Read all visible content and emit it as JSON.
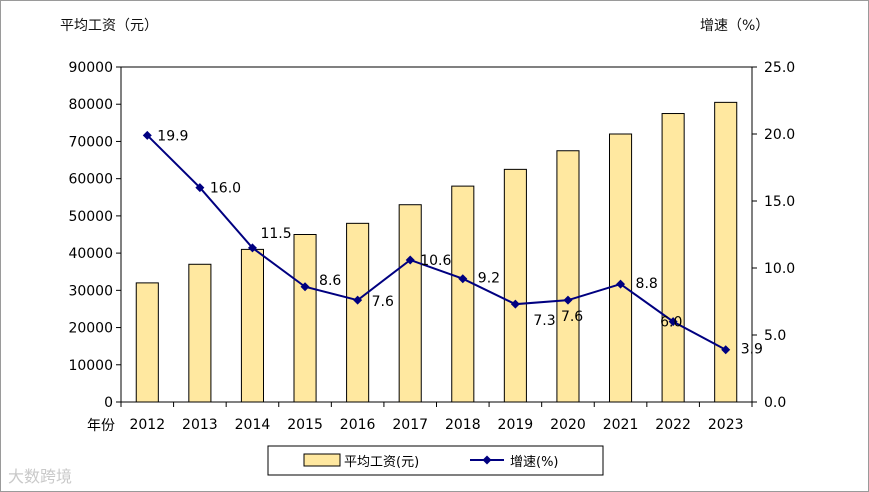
{
  "chart_data": {
    "type": "bar",
    "categories": [
      "2012",
      "2013",
      "2014",
      "2015",
      "2016",
      "2017",
      "2018",
      "2019",
      "2020",
      "2021",
      "2022",
      "2023"
    ],
    "x_prefix_label": "年份",
    "series": [
      {
        "name": "平均工资(元)",
        "type": "bar",
        "axis": "left",
        "values": [
          32000,
          37000,
          41000,
          45000,
          48000,
          53000,
          58000,
          62500,
          67500,
          72000,
          77500,
          80500
        ],
        "color": "#ffe8a0",
        "stroke": "#000000"
      },
      {
        "name": "增速(%)",
        "type": "line",
        "axis": "right",
        "values": [
          19.9,
          16.0,
          11.5,
          8.6,
          7.6,
          10.6,
          9.2,
          7.3,
          7.6,
          8.8,
          6.0,
          3.9
        ],
        "labels": [
          "19.9",
          "16.0",
          "11.5",
          "8.6",
          "7.6",
          "10.6",
          "9.2",
          "7.3",
          "7.6",
          "8.8",
          "6.0",
          "3.9"
        ],
        "color": "#000080"
      }
    ],
    "left_axis": {
      "title": "平均工资（元）",
      "ylim": [
        0,
        90000
      ],
      "ticks": [
        "0",
        "10000",
        "20000",
        "30000",
        "40000",
        "50000",
        "60000",
        "70000",
        "80000",
        "90000"
      ]
    },
    "right_axis": {
      "title": "增速（%）",
      "ylim": [
        0,
        25
      ],
      "ticks": [
        "0.0",
        "5.0",
        "10.0",
        "15.0",
        "20.0",
        "25.0"
      ]
    },
    "legend": {
      "position": "bottom",
      "items": [
        "平均工资(元)",
        "增速(%)"
      ]
    },
    "grid": false
  },
  "watermark": "大数跨境"
}
